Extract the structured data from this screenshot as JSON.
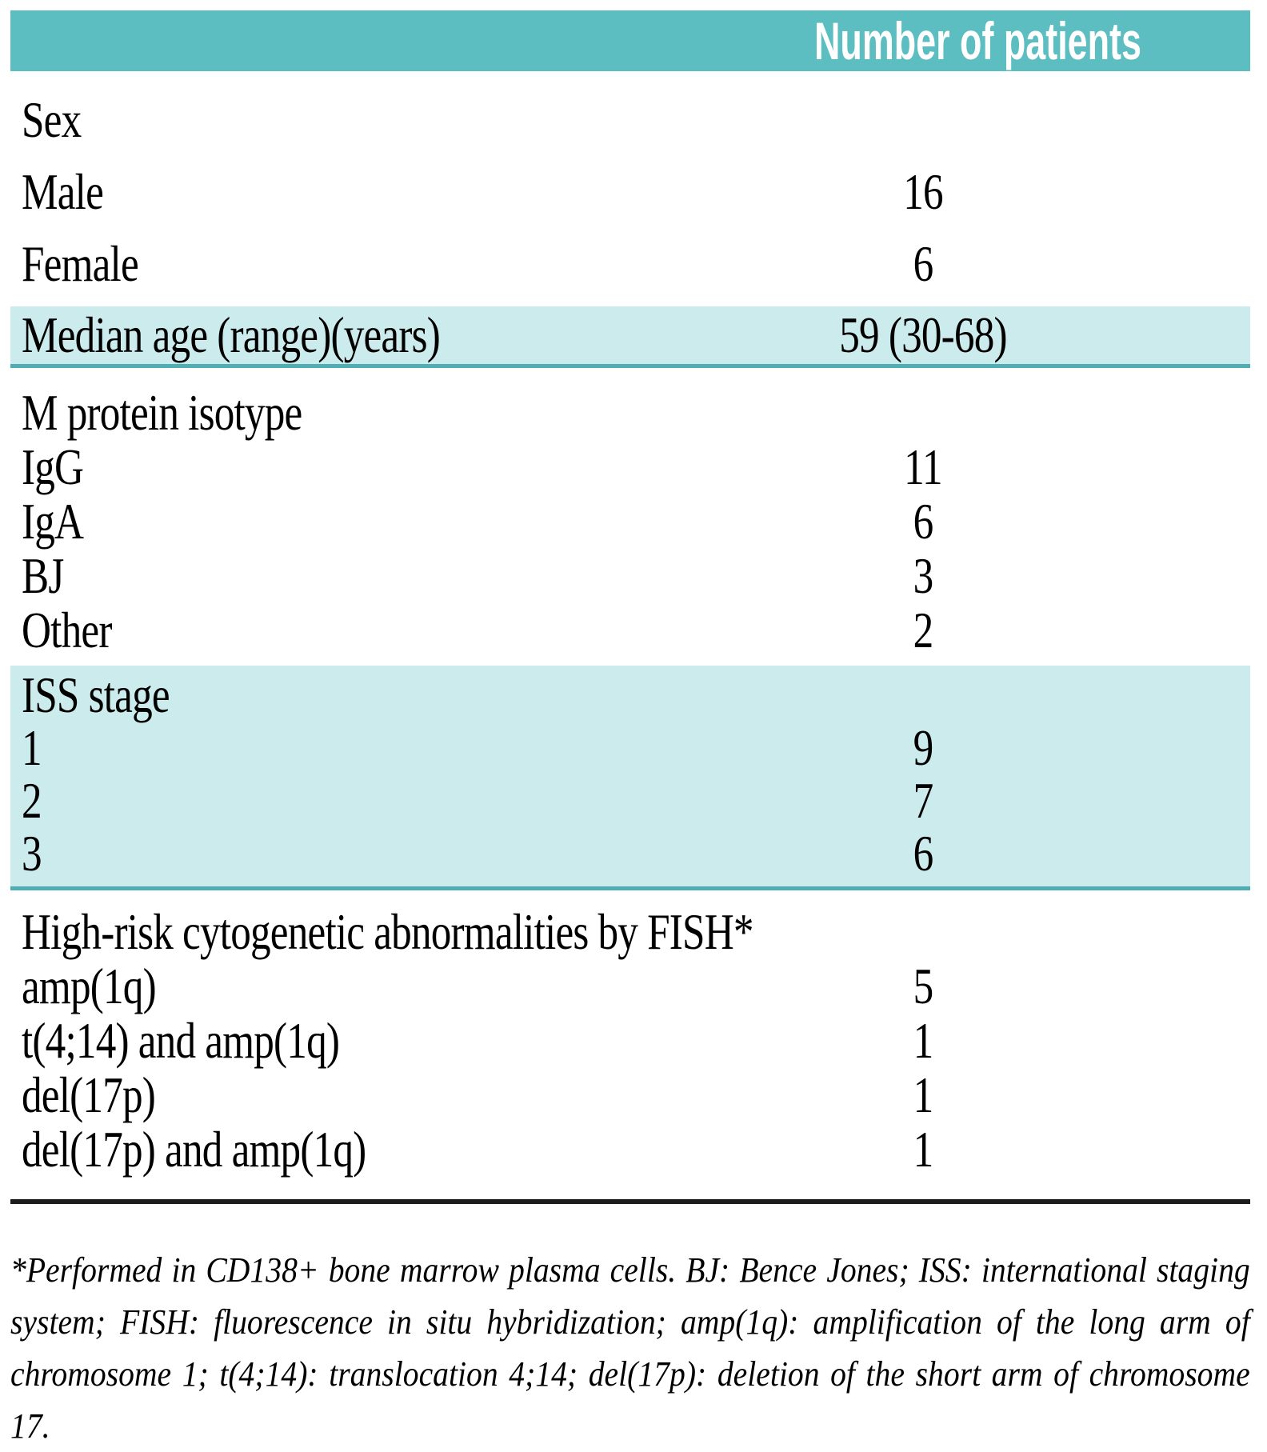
{
  "table": {
    "header": {
      "value_label": "Number of patients"
    },
    "colors": {
      "header_teal": "#5CBEC0",
      "row_teal_light": "#CBEBEC",
      "teal_border": "#4FAEB4",
      "divider": "#1c1c1c"
    },
    "sections": [
      {
        "name": "sex",
        "rows": [
          {
            "label": "Sex",
            "value": ""
          },
          {
            "label": "Male",
            "value": "16"
          },
          {
            "label": "Female",
            "value": "6"
          }
        ]
      },
      {
        "name": "median-age",
        "rows": [
          {
            "label": "Median age (range)(years)",
            "value": "59 (30-68)"
          }
        ]
      },
      {
        "name": "m-protein-isotype",
        "rows": [
          {
            "label": "M protein isotype",
            "value": ""
          },
          {
            "label": "IgG",
            "value": "11"
          },
          {
            "label": "IgA",
            "value": "6"
          },
          {
            "label": "BJ",
            "value": "3"
          },
          {
            "label": "Other",
            "value": "2"
          }
        ]
      },
      {
        "name": "iss-stage",
        "rows": [
          {
            "label": "ISS stage",
            "value": ""
          },
          {
            "label": "1",
            "value": "9"
          },
          {
            "label": "2",
            "value": "7"
          },
          {
            "label": "3",
            "value": "6"
          }
        ]
      },
      {
        "name": "cytogenetics",
        "rows": [
          {
            "label": "High-risk cytogenetic abnormalities by FISH*",
            "value": ""
          },
          {
            "label": "amp(1q)",
            "value": "5"
          },
          {
            "label": "t(4;14) and amp(1q)",
            "value": "1"
          },
          {
            "label": "del(17p)",
            "value": "1"
          },
          {
            "label": "del(17p) and amp(1q)",
            "value": "1"
          }
        ]
      }
    ],
    "footnote": "*Performed in CD138+ bone marrow plasma cells. BJ: Bence Jones; ISS: international staging system; FISH: fluorescence in situ hybridization; amp(1q): amplification of the long arm of chromosome 1; t(4;14): translocation 4;14; del(17p): deletion of the short arm of chromosome 17."
  }
}
